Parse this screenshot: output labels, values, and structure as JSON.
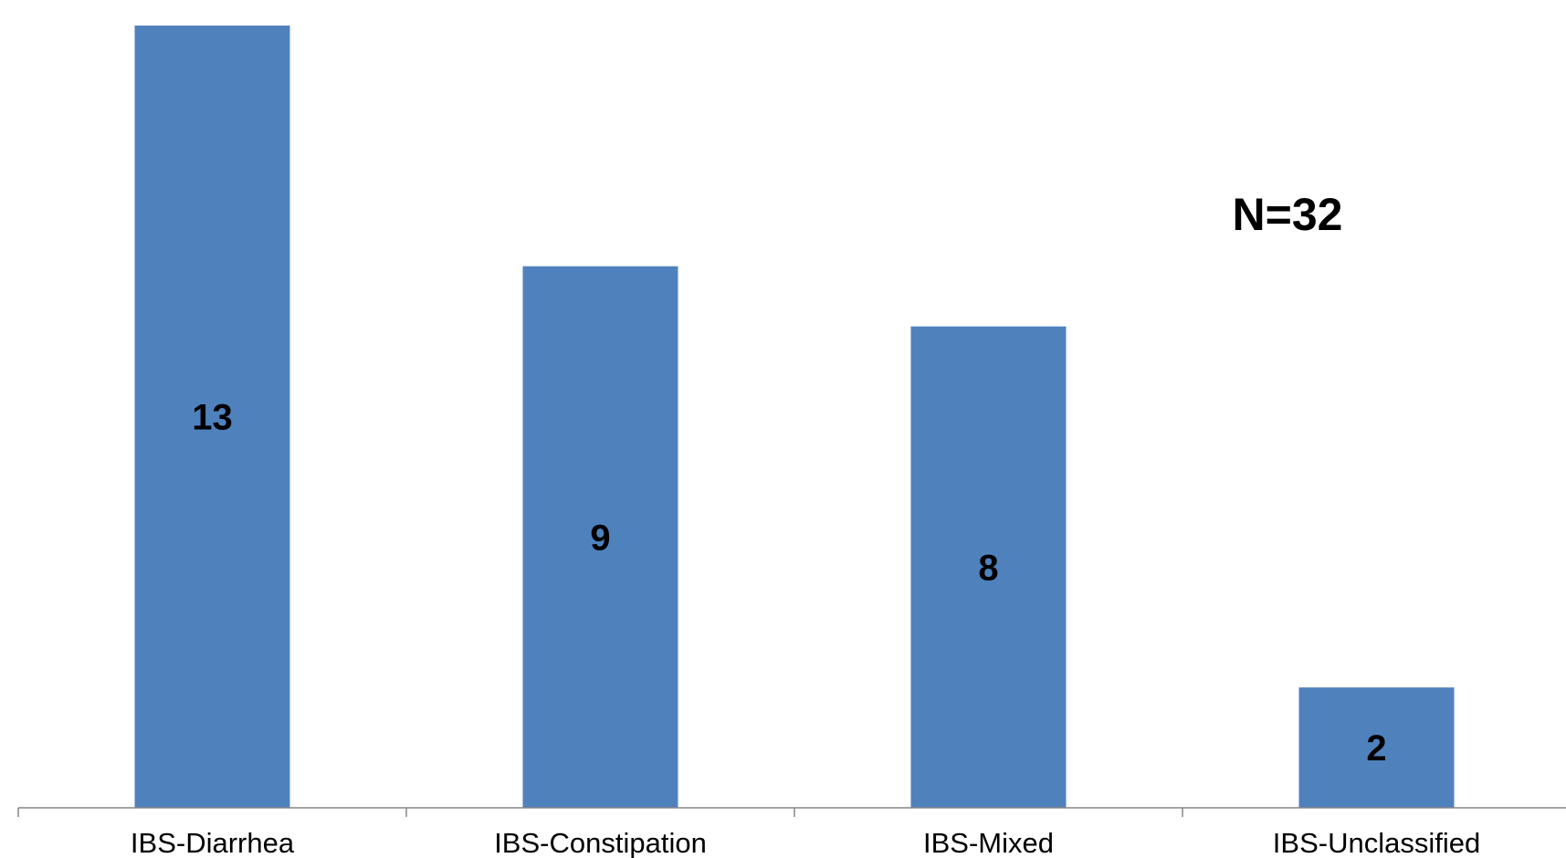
{
  "chart_data": {
    "type": "bar",
    "categories": [
      "IBS-Diarrhea",
      "IBS-Constipation",
      "IBS-Mixed",
      "IBS-Unclassified"
    ],
    "values": [
      13,
      9,
      8,
      2
    ],
    "data_labels": [
      "13",
      "9",
      "8",
      "2"
    ],
    "annotation": "N=32",
    "ylim": [
      0,
      13
    ],
    "grid": false,
    "legend": "none",
    "bar_color": "#4f81bd",
    "axis_color": "#868686"
  }
}
